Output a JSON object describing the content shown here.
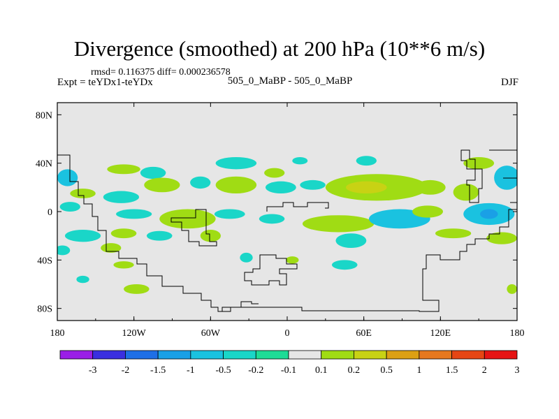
{
  "chart_data": {
    "type": "heatmap",
    "title": "Divergence (smoothed) at 200 hPa (10**6 m/s)",
    "stats_text": "rmsd= 0.116375 diff= 0.000236578",
    "left_label": "Expt = teYDx1-teYDx",
    "center_label": "505_0_MaBP - 505_0_MaBP",
    "right_label": "DJF",
    "x_range": [
      -180,
      180
    ],
    "y_range": [
      -90,
      90
    ],
    "x_ticks": [
      {
        "value": -180,
        "label": "180"
      },
      {
        "value": -120,
        "label": "120W"
      },
      {
        "value": -60,
        "label": "60W"
      },
      {
        "value": 0,
        "label": "0"
      },
      {
        "value": 60,
        "label": "60E"
      },
      {
        "value": 120,
        "label": "120E"
      },
      {
        "value": 180,
        "label": "180"
      }
    ],
    "y_ticks": [
      {
        "value": 80,
        "label": "80N"
      },
      {
        "value": 40,
        "label": "40N"
      },
      {
        "value": 0,
        "label": "0"
      },
      {
        "value": -40,
        "label": "40S"
      },
      {
        "value": -80,
        "label": "80S"
      }
    ],
    "colorbar": {
      "labels": [
        "-3",
        "-2",
        "-1.5",
        "-1",
        "-0.5",
        "-0.2",
        "-0.1",
        "0.1",
        "0.2",
        "0.5",
        "1",
        "1.5",
        "2",
        "3"
      ],
      "colors": [
        "#9a1ee6",
        "#3a2fe0",
        "#1e6fe6",
        "#1aa0e6",
        "#1ac2e0",
        "#1ad6c8",
        "#1edc96",
        "#e6e6e6",
        "#a0dc14",
        "#c8d214",
        "#dca014",
        "#e6781e",
        "#e64614",
        "#e61414"
      ]
    },
    "contour_blobs": [
      {
        "lon": -128,
        "lat": 35,
        "rlon": 13,
        "rlat": 4,
        "level": "0.1"
      },
      {
        "lon": -105,
        "lat": 32,
        "rlon": 10,
        "rlat": 5,
        "level": "-0.1"
      },
      {
        "lon": -40,
        "lat": 40,
        "rlon": 16,
        "rlat": 5,
        "level": "-0.1"
      },
      {
        "lon": -10,
        "lat": 32,
        "rlon": 8,
        "rlat": 4,
        "level": "0.1"
      },
      {
        "lon": 10,
        "lat": 42,
        "rlon": 6,
        "rlat": 3,
        "level": "-0.1"
      },
      {
        "lon": 62,
        "lat": 42,
        "rlon": 8,
        "rlat": 4,
        "level": "-0.1"
      },
      {
        "lon": 150,
        "lat": 40,
        "rlon": 12,
        "rlat": 5,
        "level": "0.1"
      },
      {
        "lon": -172,
        "lat": 28,
        "rlon": 8,
        "rlat": 7,
        "level": "-0.2"
      },
      {
        "lon": -160,
        "lat": 15,
        "rlon": 10,
        "rlat": 4,
        "level": "0.1"
      },
      {
        "lon": -130,
        "lat": 12,
        "rlon": 14,
        "rlat": 5,
        "level": "-0.1"
      },
      {
        "lon": -98,
        "lat": 22,
        "rlon": 14,
        "rlat": 6,
        "level": "0.1"
      },
      {
        "lon": -68,
        "lat": 24,
        "rlon": 8,
        "rlat": 5,
        "level": "-0.1"
      },
      {
        "lon": -40,
        "lat": 22,
        "rlon": 16,
        "rlat": 7,
        "level": "0.1"
      },
      {
        "lon": -5,
        "lat": 20,
        "rlon": 12,
        "rlat": 5,
        "level": "-0.1"
      },
      {
        "lon": 20,
        "lat": 22,
        "rlon": 10,
        "rlat": 4,
        "level": "-0.1"
      },
      {
        "lon": 70,
        "lat": 20,
        "rlon": 40,
        "rlat": 11,
        "level": "0.1"
      },
      {
        "lon": 62,
        "lat": 20,
        "rlon": 16,
        "rlat": 5,
        "level": "0.2"
      },
      {
        "lon": 112,
        "lat": 20,
        "rlon": 12,
        "rlat": 6,
        "level": "0.1"
      },
      {
        "lon": 140,
        "lat": 16,
        "rlon": 10,
        "rlat": 7,
        "level": "0.1"
      },
      {
        "lon": 172,
        "lat": 28,
        "rlon": 10,
        "rlat": 10,
        "level": "-0.2"
      },
      {
        "lon": -170,
        "lat": 4,
        "rlon": 8,
        "rlat": 4,
        "level": "-0.1"
      },
      {
        "lon": -120,
        "lat": -2,
        "rlon": 14,
        "rlat": 4,
        "level": "-0.1"
      },
      {
        "lon": -78,
        "lat": -6,
        "rlon": 22,
        "rlat": 8,
        "level": "0.1"
      },
      {
        "lon": -45,
        "lat": -2,
        "rlon": 12,
        "rlat": 4,
        "level": "-0.1"
      },
      {
        "lon": -12,
        "lat": -6,
        "rlon": 10,
        "rlat": 4,
        "level": "-0.1"
      },
      {
        "lon": 40,
        "lat": -10,
        "rlon": 28,
        "rlat": 7,
        "level": "0.1"
      },
      {
        "lon": 88,
        "lat": -6,
        "rlon": 24,
        "rlat": 8,
        "level": "-0.2"
      },
      {
        "lon": 110,
        "lat": 0,
        "rlon": 12,
        "rlat": 5,
        "level": "0.1"
      },
      {
        "lon": 158,
        "lat": -2,
        "rlon": 20,
        "rlat": 9,
        "level": "-0.2"
      },
      {
        "lon": 158,
        "lat": -2,
        "rlon": 7,
        "rlat": 4,
        "level": "-0.5"
      },
      {
        "lon": -160,
        "lat": -20,
        "rlon": 14,
        "rlat": 5,
        "level": "-0.1"
      },
      {
        "lon": -128,
        "lat": -18,
        "rlon": 10,
        "rlat": 4,
        "level": "0.1"
      },
      {
        "lon": -100,
        "lat": -20,
        "rlon": 10,
        "rlat": 4,
        "level": "-0.1"
      },
      {
        "lon": -60,
        "lat": -20,
        "rlon": 8,
        "rlat": 5,
        "level": "0.1"
      },
      {
        "lon": 50,
        "lat": -24,
        "rlon": 12,
        "rlat": 6,
        "level": "-0.1"
      },
      {
        "lon": 130,
        "lat": -18,
        "rlon": 14,
        "rlat": 4,
        "level": "0.1"
      },
      {
        "lon": 168,
        "lat": -22,
        "rlon": 12,
        "rlat": 5,
        "level": "0.1"
      },
      {
        "lon": -176,
        "lat": -32,
        "rlon": 6,
        "rlat": 4,
        "level": "-0.1"
      },
      {
        "lon": -138,
        "lat": -30,
        "rlon": 8,
        "rlat": 4,
        "level": "0.1"
      },
      {
        "lon": -32,
        "lat": -38,
        "rlon": 5,
        "rlat": 4,
        "level": "-0.1"
      },
      {
        "lon": 45,
        "lat": -44,
        "rlon": 10,
        "rlat": 4,
        "level": "-0.1"
      },
      {
        "lon": -128,
        "lat": -44,
        "rlon": 8,
        "rlat": 3,
        "level": "0.1"
      },
      {
        "lon": 4,
        "lat": -40,
        "rlon": 5,
        "rlat": 3,
        "level": "0.1"
      },
      {
        "lon": -160,
        "lat": -56,
        "rlon": 5,
        "rlat": 3,
        "level": "-0.1"
      },
      {
        "lon": -118,
        "lat": -64,
        "rlon": 10,
        "rlat": 4,
        "level": "0.1"
      },
      {
        "lon": 176,
        "lat": -64,
        "rlon": 4,
        "rlat": 4,
        "level": "0.1"
      }
    ]
  }
}
